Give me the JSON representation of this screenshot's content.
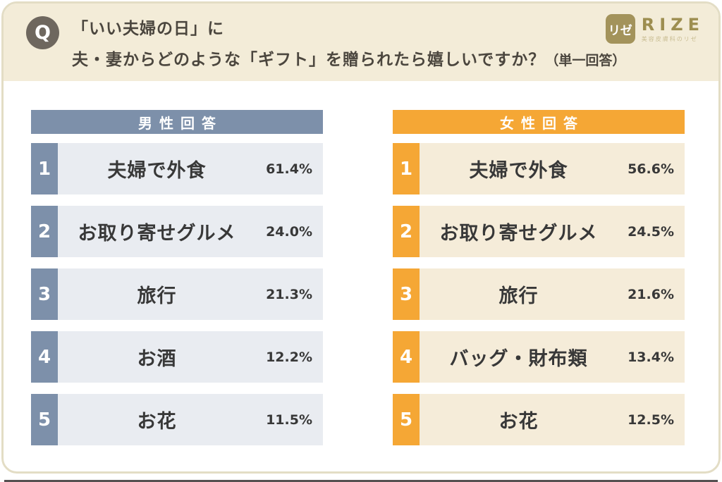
{
  "header": {
    "q_label": "Q",
    "question_line1": "「いい夫婦の日」に",
    "question_line2": "夫・妻からどのような「ギフト」を贈られたら嬉しいですか？",
    "question_note": "（単一回答）",
    "logo": {
      "mark": "リゼ",
      "name": "RIZE",
      "subtitle": "美容皮膚科のリゼ"
    }
  },
  "colors": {
    "male_accent": "#7d90aa",
    "male_row_bg": "#e9ecf1",
    "female_accent": "#f5a735",
    "female_row_bg": "#f5ecd9",
    "header_band_bg": "#f3ecd8",
    "card_border": "#e3ddc5",
    "q_circle_bg": "#6e675e",
    "logo_gold": "#a3935b"
  },
  "columns": [
    {
      "title": "男性回答",
      "rows": [
        {
          "rank": "1",
          "label": "夫婦で外食",
          "value": "61.4%"
        },
        {
          "rank": "2",
          "label": "お取り寄せグルメ",
          "value": "24.0%"
        },
        {
          "rank": "3",
          "label": "旅行",
          "value": "21.3%"
        },
        {
          "rank": "4",
          "label": "お酒",
          "value": "12.2%"
        },
        {
          "rank": "5",
          "label": "お花",
          "value": "11.5%"
        }
      ]
    },
    {
      "title": "女性回答",
      "rows": [
        {
          "rank": "1",
          "label": "夫婦で外食",
          "value": "56.6%"
        },
        {
          "rank": "2",
          "label": "お取り寄せグルメ",
          "value": "24.5%"
        },
        {
          "rank": "3",
          "label": "旅行",
          "value": "21.6%"
        },
        {
          "rank": "4",
          "label": "バッグ・財布類",
          "value": "13.4%"
        },
        {
          "rank": "5",
          "label": "お花",
          "value": "12.5%"
        }
      ]
    }
  ],
  "chart_data": [
    {
      "type": "table",
      "title": "男性回答",
      "categories": [
        "夫婦で外食",
        "お取り寄せグルメ",
        "旅行",
        "お酒",
        "お花"
      ],
      "values": [
        61.4,
        24.0,
        21.3,
        12.2,
        11.5
      ],
      "unit": "%",
      "note": "ranking 1-5, single-answer survey"
    },
    {
      "type": "table",
      "title": "女性回答",
      "categories": [
        "夫婦で外食",
        "お取り寄せグルメ",
        "旅行",
        "バッグ・財布類",
        "お花"
      ],
      "values": [
        56.6,
        24.5,
        21.6,
        13.4,
        12.5
      ],
      "unit": "%",
      "note": "ranking 1-5, single-answer survey"
    }
  ]
}
